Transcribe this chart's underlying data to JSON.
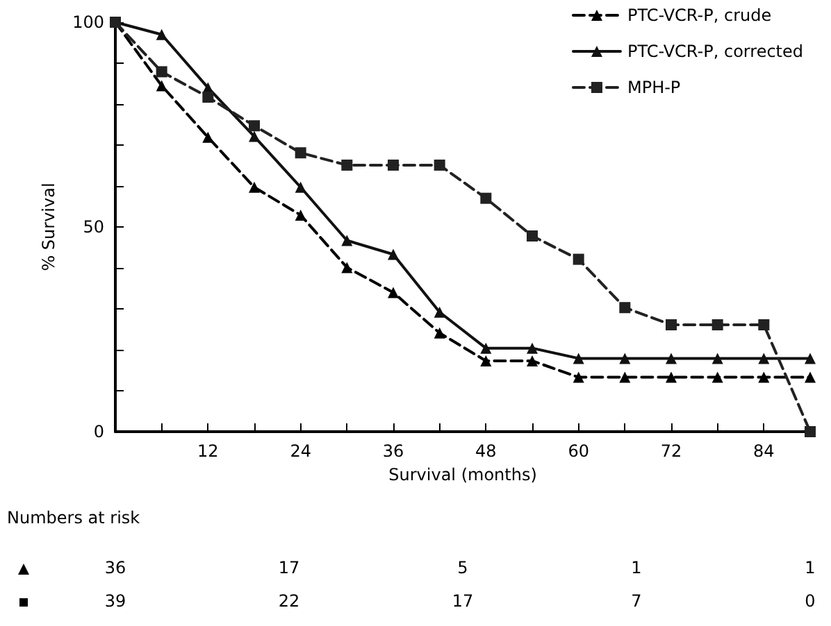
{
  "chart_data": {
    "type": "line",
    "xlabel": "Survival (months)",
    "ylabel": "% Survival",
    "x": [
      0,
      6,
      12,
      18,
      24,
      30,
      36,
      42,
      48,
      54,
      60,
      66,
      72,
      78,
      84,
      90
    ],
    "series": [
      {
        "name": "PTC-VCR-P, crude",
        "color": "#000000",
        "marker": "triangle",
        "line_style": "dashed",
        "values": [
          100,
          84.5,
          71.9,
          59.7,
          52.9,
          40.1,
          34,
          24.1,
          17.3,
          17.3,
          13.3,
          13.3,
          13.3,
          13.3,
          13.3,
          13.3
        ]
      },
      {
        "name": "PTC-VCR-P, corrected",
        "color": "#111111",
        "marker": "triangle",
        "line_style": "solid",
        "values": [
          100,
          97,
          84,
          72.1,
          59.7,
          46.7,
          43.3,
          29.2,
          20.4,
          20.4,
          17.9,
          17.9,
          17.9,
          17.9,
          17.9,
          17.9
        ]
      },
      {
        "name": "MPH-P",
        "color": "#222222",
        "marker": "square",
        "line_style": "dashed",
        "values": [
          100,
          87.9,
          81.7,
          74.7,
          68.1,
          65.1,
          65.1,
          65.1,
          57,
          47.8,
          42.1,
          30.3,
          26.1,
          26.1,
          26.1,
          0
        ]
      }
    ],
    "xlim": [
      0,
      90
    ],
    "xticks": [
      {
        "value": 6,
        "label": null
      },
      12,
      {
        "value": 18,
        "label": null
      },
      24,
      {
        "value": 30,
        "label": null
      },
      36,
      {
        "value": 42,
        "label": null
      },
      48,
      {
        "value": 54,
        "label": null
      },
      60,
      {
        "value": 66,
        "label": null
      },
      72,
      {
        "value": 78,
        "label": null
      },
      84
    ],
    "ylim": [
      0,
      100
    ],
    "yticks": [
      0,
      {
        "value": 10,
        "label": null
      },
      {
        "value": 20,
        "label": null
      },
      {
        "value": 30,
        "label": null
      },
      {
        "value": 40,
        "label": null
      },
      50,
      {
        "value": 60,
        "label": null
      },
      {
        "value": 70,
        "label": null
      },
      {
        "value": 80,
        "label": null
      },
      {
        "value": 90,
        "label": null
      },
      100
    ],
    "grid": false,
    "legend": "top right",
    "annotations": [
      "Numbers at risk",
      "36",
      "17",
      "5",
      "1",
      "1",
      "39",
      "22",
      "17",
      "7",
      "0"
    ]
  }
}
